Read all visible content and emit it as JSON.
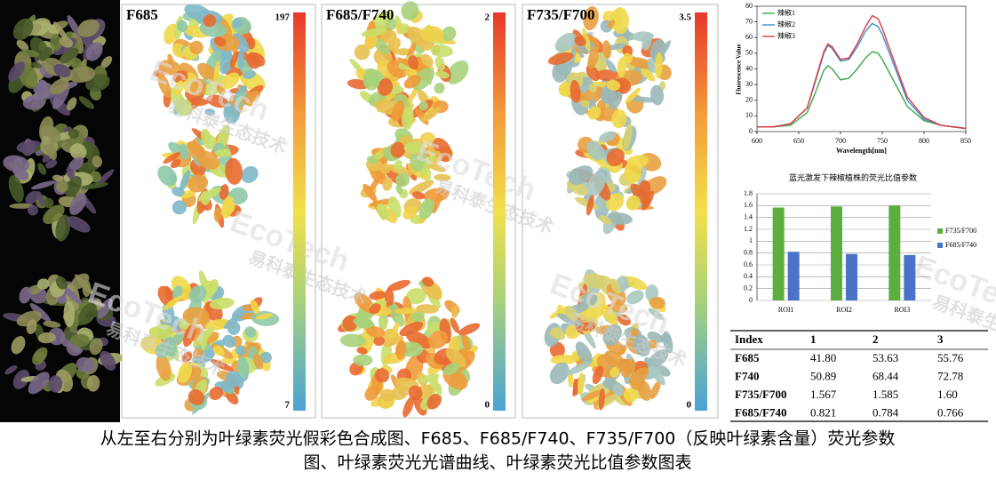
{
  "panels": [
    {
      "title": "F685",
      "scale_max": "197",
      "scale_min": "7"
    },
    {
      "title": "F685/F740",
      "scale_max": "2",
      "scale_min": "0"
    },
    {
      "title": "F735/F700",
      "scale_max": "3.5",
      "scale_min": "0"
    }
  ],
  "watermark": {
    "brand": "EcoTech",
    "company": "易科泰生态技术"
  },
  "chart_data": [
    {
      "type": "line",
      "x_label": "Wavelength[nm]",
      "y_label": "Fluorescence Value",
      "x": [
        600,
        620,
        640,
        660,
        670,
        680,
        685,
        690,
        700,
        710,
        720,
        730,
        738,
        745,
        750,
        760,
        780,
        800,
        820,
        850
      ],
      "series": [
        {
          "name": "辣椒1",
          "color": "#3aa845",
          "values": [
            3,
            3,
            4,
            12,
            25,
            39,
            42,
            40,
            33,
            34,
            40,
            47,
            51,
            50,
            46,
            36,
            16,
            7,
            4,
            2
          ]
        },
        {
          "name": "辣椒2",
          "color": "#3d8fd1",
          "values": [
            3,
            3,
            5,
            15,
            32,
            50,
            55,
            53,
            45,
            46,
            54,
            64,
            69,
            67,
            62,
            48,
            20,
            8,
            4,
            2
          ]
        },
        {
          "name": "辣椒3",
          "color": "#e0383c",
          "values": [
            3,
            3,
            5,
            15,
            33,
            51,
            56,
            54,
            46,
            47,
            56,
            67,
            74,
            72,
            66,
            51,
            22,
            9,
            4,
            2
          ]
        }
      ],
      "xlim": [
        600,
        850
      ],
      "xticks": [
        600,
        650,
        700,
        750,
        800,
        850
      ],
      "ylim": [
        0,
        80
      ],
      "yticks": [
        0,
        10,
        20,
        30,
        40,
        50,
        60,
        70,
        80
      ],
      "legend": "upper-left"
    },
    {
      "type": "bar",
      "title": "蓝光激发下辣椒植株的荧光比值参数",
      "categories": [
        "ROI1",
        "ROI2",
        "ROI3"
      ],
      "series": [
        {
          "name": "F735/F700",
          "color": "#5cae3f",
          "values": [
            1.567,
            1.585,
            1.6
          ]
        },
        {
          "name": "F685/F740",
          "color": "#4a72c9",
          "values": [
            0.821,
            0.784,
            0.766
          ]
        }
      ],
      "ylim": [
        0,
        1.8
      ],
      "yticks": [
        0,
        0.2,
        0.4,
        0.6,
        0.8,
        1,
        1.2,
        1.4,
        1.6,
        1.8
      ],
      "grid": true,
      "legend": "right"
    }
  ],
  "table": {
    "header": [
      "Index",
      "1",
      "2",
      "3"
    ],
    "rows": [
      [
        "F685",
        "41.80",
        "53.63",
        "55.76"
      ],
      [
        "F740",
        "50.89",
        "68.44",
        "72.78"
      ],
      [
        "F735/F700",
        "1.567",
        "1.585",
        "1.60"
      ],
      [
        "F685/F740",
        "0.821",
        "0.784",
        "0.766"
      ]
    ]
  },
  "caption": [
    "从左至右分别为叶绿素荧光假彩色合成图、F685、F685/F740、F735/F700（反映叶绿素含量）荧光参数",
    "图、叶绿素荧光光谱曲线、叶绿素荧光比值参数图表"
  ]
}
